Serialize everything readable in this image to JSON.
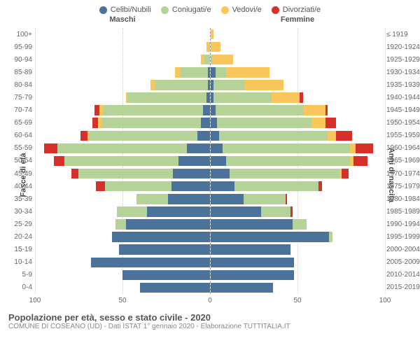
{
  "legend": [
    {
      "label": "Celibi/Nubili",
      "color": "#4b729a"
    },
    {
      "label": "Coniugati/e",
      "color": "#b5d298"
    },
    {
      "label": "Vedovi/e",
      "color": "#f9c65b"
    },
    {
      "label": "Divorziati/e",
      "color": "#d6302a"
    }
  ],
  "sex_labels": {
    "male": "Maschi",
    "female": "Femmine"
  },
  "axis_titles": {
    "left": "Fasce di età",
    "right": "Anni di nascita"
  },
  "x_axis": {
    "max": 100,
    "ticks": [
      100,
      50,
      0,
      50,
      100
    ]
  },
  "styling": {
    "background": "#ffffff",
    "grid_color": "#cccccc",
    "center_line_color": "#999999",
    "label_color": "#666666",
    "label_fontsize": 10,
    "legend_fontsize": 11
  },
  "rows": [
    {
      "age": "100+",
      "birth": "≤ 1919",
      "m": [
        0,
        0,
        0,
        0
      ],
      "f": [
        0,
        0,
        2,
        0
      ]
    },
    {
      "age": "95-99",
      "birth": "1920-1924",
      "m": [
        0,
        0,
        2,
        0
      ],
      "f": [
        0,
        0,
        6,
        0
      ]
    },
    {
      "age": "90-94",
      "birth": "1925-1929",
      "m": [
        0,
        3,
        2,
        0
      ],
      "f": [
        0,
        1,
        12,
        0
      ]
    },
    {
      "age": "85-89",
      "birth": "1930-1934",
      "m": [
        1,
        16,
        3,
        0
      ],
      "f": [
        3,
        6,
        25,
        0
      ]
    },
    {
      "age": "80-84",
      "birth": "1935-1939",
      "m": [
        1,
        30,
        3,
        0
      ],
      "f": [
        2,
        18,
        22,
        0
      ]
    },
    {
      "age": "75-79",
      "birth": "1940-1944",
      "m": [
        2,
        45,
        1,
        0
      ],
      "f": [
        2,
        33,
        16,
        2
      ]
    },
    {
      "age": "70-74",
      "birth": "1945-1949",
      "m": [
        4,
        57,
        2,
        3
      ],
      "f": [
        3,
        50,
        13,
        1
      ]
    },
    {
      "age": "65-69",
      "birth": "1950-1954",
      "m": [
        5,
        57,
        2,
        3
      ],
      "f": [
        4,
        54,
        8,
        6
      ]
    },
    {
      "age": "60-64",
      "birth": "1955-1959",
      "m": [
        7,
        62,
        1,
        4
      ],
      "f": [
        5,
        62,
        5,
        9
      ]
    },
    {
      "age": "55-59",
      "birth": "1960-1964",
      "m": [
        13,
        74,
        0,
        8
      ],
      "f": [
        7,
        73,
        3,
        10
      ]
    },
    {
      "age": "50-54",
      "birth": "1965-1969",
      "m": [
        18,
        65,
        0,
        6
      ],
      "f": [
        9,
        71,
        2,
        8
      ]
    },
    {
      "age": "45-49",
      "birth": "1970-1974",
      "m": [
        21,
        54,
        0,
        4
      ],
      "f": [
        11,
        63,
        1,
        4
      ]
    },
    {
      "age": "40-44",
      "birth": "1975-1979",
      "m": [
        22,
        38,
        0,
        5
      ],
      "f": [
        14,
        48,
        0,
        2
      ]
    },
    {
      "age": "35-39",
      "birth": "1980-1984",
      "m": [
        24,
        18,
        0,
        0
      ],
      "f": [
        19,
        24,
        0,
        1
      ]
    },
    {
      "age": "30-34",
      "birth": "1985-1989",
      "m": [
        36,
        17,
        0,
        0
      ],
      "f": [
        29,
        17,
        0,
        1
      ]
    },
    {
      "age": "25-29",
      "birth": "1990-1994",
      "m": [
        48,
        6,
        0,
        0
      ],
      "f": [
        47,
        8,
        0,
        0
      ]
    },
    {
      "age": "20-24",
      "birth": "1995-1999",
      "m": [
        56,
        0,
        0,
        0
      ],
      "f": [
        68,
        2,
        0,
        0
      ]
    },
    {
      "age": "15-19",
      "birth": "2000-2004",
      "m": [
        52,
        0,
        0,
        0
      ],
      "f": [
        46,
        0,
        0,
        0
      ]
    },
    {
      "age": "10-14",
      "birth": "2005-2009",
      "m": [
        68,
        0,
        0,
        0
      ],
      "f": [
        48,
        0,
        0,
        0
      ]
    },
    {
      "age": "5-9",
      "birth": "2010-2014",
      "m": [
        50,
        0,
        0,
        0
      ],
      "f": [
        48,
        0,
        0,
        0
      ]
    },
    {
      "age": "0-4",
      "birth": "2015-2019",
      "m": [
        40,
        0,
        0,
        0
      ],
      "f": [
        36,
        0,
        0,
        0
      ]
    }
  ],
  "footer": {
    "title": "Popolazione per età, sesso e stato civile - 2020",
    "subtitle": "COMUNE DI COSEANO (UD) - Dati ISTAT 1° gennaio 2020 - Elaborazione TUTTITALIA.IT"
  }
}
